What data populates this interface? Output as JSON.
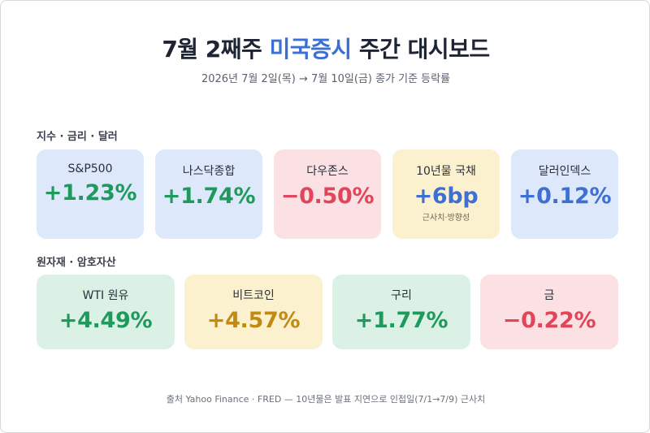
{
  "header": {
    "title_prefix": "7월 2째주 ",
    "title_accent": "미국증시",
    "title_suffix": " 주간 대시보드",
    "subtitle": "2026년 7월 2일(목) → 7월 10일(금) 종가 기준 등락률"
  },
  "sections": {
    "indices_label": "지수 · 금리 · 달러",
    "commodities_label": "원자재 · 암호자산"
  },
  "indices": [
    {
      "label": "S&P500",
      "value": "+1.23%",
      "note": ""
    },
    {
      "label": "나스닥종합",
      "value": "+1.74%",
      "note": ""
    },
    {
      "label": "다우존스",
      "value": "−0.50%",
      "note": ""
    },
    {
      "label": "10년물 국채",
      "value": "+6bp",
      "note": "근사치·방향성"
    },
    {
      "label": "달러인덱스",
      "value": "+0.12%",
      "note": ""
    }
  ],
  "commodities": [
    {
      "label": "WTI 원유",
      "value": "+4.49%"
    },
    {
      "label": "비트코인",
      "value": "+4.57%"
    },
    {
      "label": "구리",
      "value": "+1.77%"
    },
    {
      "label": "금",
      "value": "−0.22%"
    }
  ],
  "footer": "출처 Yahoo Finance · FRED — 10년물은 발표 지연으로 인접일(7/1→7/9) 근사치",
  "colors": {
    "accent": "#3b6fd8",
    "positive": "#1f9a5c",
    "negative": "#e0455a",
    "neutral_blue": "#3e6fd2",
    "gold": "#c08a14"
  }
}
